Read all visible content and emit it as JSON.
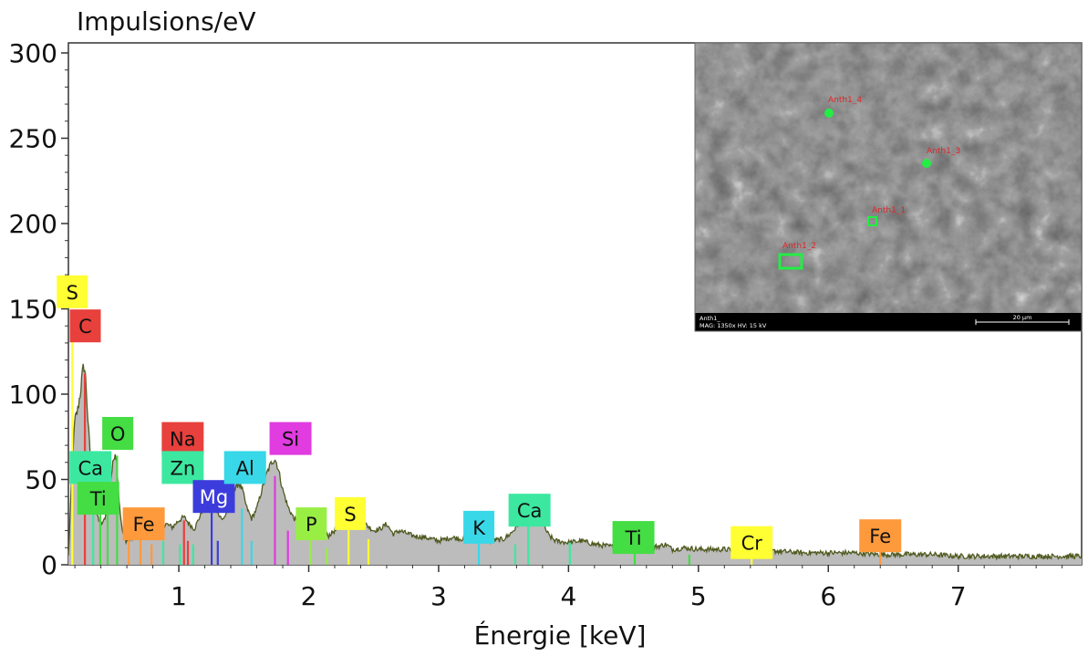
{
  "chart_data": {
    "type": "area",
    "ylabel": "Impulsions/eV",
    "xlabel": "Énergie [keV]",
    "xlim": [
      0.15,
      7.95
    ],
    "ylim": [
      0,
      300
    ],
    "x_ticks": [
      "1",
      "2",
      "3",
      "4",
      "5",
      "6",
      "7"
    ],
    "y_ticks": [
      "0",
      "50",
      "100",
      "150",
      "200",
      "250",
      "300"
    ],
    "grid": false,
    "colors": {
      "fill": "#bcbcbc",
      "outline": "#4f5a1f"
    },
    "spectrum": {
      "x": [
        0.15,
        0.18,
        0.2,
        0.22,
        0.24,
        0.26,
        0.27,
        0.28,
        0.29,
        0.3,
        0.32,
        0.34,
        0.36,
        0.38,
        0.4,
        0.42,
        0.44,
        0.46,
        0.48,
        0.5,
        0.51,
        0.52,
        0.53,
        0.54,
        0.56,
        0.58,
        0.6,
        0.65,
        0.7,
        0.75,
        0.8,
        0.85,
        0.9,
        0.95,
        1.0,
        1.04,
        1.08,
        1.12,
        1.16,
        1.2,
        1.24,
        1.27,
        1.3,
        1.34,
        1.38,
        1.42,
        1.46,
        1.49,
        1.52,
        1.56,
        1.6,
        1.64,
        1.68,
        1.72,
        1.74,
        1.76,
        1.8,
        1.84,
        1.88,
        1.92,
        1.96,
        2.0,
        2.05,
        2.1,
        2.15,
        2.2,
        2.25,
        2.3,
        2.35,
        2.4,
        2.5,
        2.55,
        2.6,
        2.65,
        2.7,
        2.8,
        2.9,
        3.0,
        3.1,
        3.2,
        3.3,
        3.35,
        3.4,
        3.5,
        3.55,
        3.6,
        3.65,
        3.69,
        3.72,
        3.75,
        3.8,
        3.85,
        3.9,
        4.0,
        4.1,
        4.2,
        4.3,
        4.4,
        4.5,
        4.6,
        4.7,
        4.75,
        4.8,
        4.9,
        5.0,
        5.2,
        5.4,
        5.6,
        5.8,
        6.0,
        6.2,
        6.4,
        6.6,
        6.8,
        7.0,
        7.2,
        7.4,
        7.6,
        7.8,
        7.95
      ],
      "y": [
        5,
        60,
        85,
        90,
        100,
        113,
        117,
        112,
        100,
        85,
        62,
        45,
        33,
        27,
        24,
        25,
        30,
        40,
        52,
        63,
        66,
        62,
        52,
        38,
        22,
        15,
        14,
        16,
        20,
        17,
        21,
        20,
        24,
        22,
        26,
        28,
        24,
        21,
        28,
        35,
        39,
        37,
        31,
        26,
        33,
        42,
        48,
        44,
        34,
        27,
        33,
        44,
        54,
        61,
        62,
        58,
        44,
        34,
        28,
        24,
        26,
        20,
        17,
        19,
        17,
        20,
        22,
        28,
        31,
        26,
        20,
        21,
        24,
        18,
        20,
        17,
        16,
        14,
        16,
        15,
        17,
        15,
        14,
        15,
        18,
        22,
        29,
        34,
        35,
        31,
        24,
        17,
        14,
        13,
        14,
        12,
        11,
        10,
        11,
        10,
        11,
        12,
        9,
        10,
        9,
        9,
        8,
        8,
        7,
        7,
        7,
        6,
        6,
        6,
        5,
        5,
        5,
        5,
        5,
        5
      ]
    },
    "element_lines": [
      {
        "el": "S",
        "x": 0.18,
        "h": 140,
        "color": "#ffff33"
      },
      {
        "el": "C",
        "x": 0.277,
        "h": 112,
        "color": "#e8403c"
      },
      {
        "el": "Ca",
        "x": 0.341,
        "h": 58,
        "color": "#3ce8a0"
      },
      {
        "el": "Ti",
        "x": 0.395,
        "h": 52,
        "color": "#44dd44"
      },
      {
        "el": "Ti",
        "x": 0.452,
        "h": 40,
        "color": "#44dd44"
      },
      {
        "el": "O",
        "x": 0.525,
        "h": 64,
        "color": "#44dd44"
      },
      {
        "el": "Fe",
        "x": 0.615,
        "h": 20,
        "color": "#ff9a3c"
      },
      {
        "el": "Fe",
        "x": 0.705,
        "h": 16,
        "color": "#ff9a3c"
      },
      {
        "el": "Fe",
        "x": 0.79,
        "h": 12,
        "color": "#ff9a3c"
      },
      {
        "el": "Zn",
        "x": 0.88,
        "h": 14,
        "color": "#3ce8a0"
      },
      {
        "el": "Zn",
        "x": 1.01,
        "h": 12,
        "color": "#3ce8a0"
      },
      {
        "el": "Na",
        "x": 1.04,
        "h": 26,
        "color": "#e8403c"
      },
      {
        "el": "Na",
        "x": 1.07,
        "h": 14,
        "color": "#e8403c"
      },
      {
        "el": "Zn",
        "x": 1.11,
        "h": 12,
        "color": "#3ce8a0"
      },
      {
        "el": "Mg",
        "x": 1.253,
        "h": 33,
        "color": "#3c3cdd"
      },
      {
        "el": "Mg",
        "x": 1.3,
        "h": 14,
        "color": "#3c3cdd"
      },
      {
        "el": "Al",
        "x": 1.486,
        "h": 33,
        "color": "#38d8e8"
      },
      {
        "el": "Al",
        "x": 1.56,
        "h": 14,
        "color": "#38d8e8"
      },
      {
        "el": "Si",
        "x": 1.74,
        "h": 52,
        "color": "#e03ce0"
      },
      {
        "el": "Si",
        "x": 1.84,
        "h": 20,
        "color": "#e03ce0"
      },
      {
        "el": "P",
        "x": 2.013,
        "h": 20,
        "color": "#99ee44"
      },
      {
        "el": "P",
        "x": 2.14,
        "h": 10,
        "color": "#99ee44"
      },
      {
        "el": "S",
        "x": 2.307,
        "h": 27,
        "color": "#ffff33"
      },
      {
        "el": "S",
        "x": 2.46,
        "h": 15,
        "color": "#ffff33"
      },
      {
        "el": "K",
        "x": 3.31,
        "h": 14,
        "color": "#38d8e8"
      },
      {
        "el": "Ca",
        "x": 3.59,
        "h": 12,
        "color": "#3ce8a0"
      },
      {
        "el": "Ca",
        "x": 3.69,
        "h": 31,
        "color": "#3ce8a0"
      },
      {
        "el": "Ca",
        "x": 4.01,
        "h": 13,
        "color": "#3ce8a0"
      },
      {
        "el": "Ti",
        "x": 4.51,
        "h": 10,
        "color": "#44dd44"
      },
      {
        "el": "Ti",
        "x": 4.93,
        "h": 6,
        "color": "#44dd44"
      },
      {
        "el": "Cr",
        "x": 5.41,
        "h": 6,
        "color": "#ffff33"
      },
      {
        "el": "Fe",
        "x": 6.4,
        "h": 9,
        "color": "#ff9a3c"
      }
    ],
    "element_labels": [
      {
        "text": "S",
        "x": 0.18,
        "y": 160,
        "bg": "#ffff33",
        "fg": "#111111"
      },
      {
        "text": "C",
        "x": 0.28,
        "y": 140,
        "bg": "#e8403c",
        "fg": "#111111"
      },
      {
        "text": "O",
        "x": 0.53,
        "y": 77,
        "bg": "#44dd44",
        "fg": "#111111"
      },
      {
        "text": "Ca",
        "x": 0.32,
        "y": 57,
        "bg": "#3ce8a0",
        "fg": "#111111"
      },
      {
        "text": "Ti",
        "x": 0.38,
        "y": 39,
        "bg": "#44dd44",
        "fg": "#111111"
      },
      {
        "text": "Fe",
        "x": 0.73,
        "y": 24,
        "bg": "#ff9a3c",
        "fg": "#111111"
      },
      {
        "text": "Na",
        "x": 1.03,
        "y": 74,
        "bg": "#e8403c",
        "fg": "#111111"
      },
      {
        "text": "Zn",
        "x": 1.03,
        "y": 57,
        "bg": "#3ce8a0",
        "fg": "#111111"
      },
      {
        "text": "Mg",
        "x": 1.27,
        "y": 40,
        "bg": "#3c3cdd",
        "fg": "#ffffff"
      },
      {
        "text": "Al",
        "x": 1.51,
        "y": 57,
        "bg": "#38d8e8",
        "fg": "#111111"
      },
      {
        "text": "Si",
        "x": 1.86,
        "y": 74,
        "bg": "#e03ce0",
        "fg": "#111111"
      },
      {
        "text": "P",
        "x": 2.02,
        "y": 24,
        "bg": "#99ee44",
        "fg": "#111111"
      },
      {
        "text": "S",
        "x": 2.32,
        "y": 30,
        "bg": "#ffff33",
        "fg": "#111111"
      },
      {
        "text": "K",
        "x": 3.31,
        "y": 22,
        "bg": "#38d8e8",
        "fg": "#111111"
      },
      {
        "text": "Ca",
        "x": 3.7,
        "y": 32,
        "bg": "#3ce8a0",
        "fg": "#111111"
      },
      {
        "text": "Ti",
        "x": 4.5,
        "y": 16,
        "bg": "#44dd44",
        "fg": "#111111"
      },
      {
        "text": "Cr",
        "x": 5.41,
        "y": 13,
        "bg": "#ffff33",
        "fg": "#111111"
      },
      {
        "text": "Fe",
        "x": 6.4,
        "y": 17,
        "bg": "#ff9a3c",
        "fg": "#111111"
      }
    ]
  },
  "inset": {
    "caption_name": "Anth1_",
    "caption_params": "MAG: 1350x    HV: 15 kV",
    "scale_label": "20 µm",
    "regions": [
      "Anth1_4",
      "Anth1_3",
      "Anth1_1",
      "Anth1_2"
    ],
    "marker_color": "#22ee44",
    "label_color": "#e0262b"
  }
}
